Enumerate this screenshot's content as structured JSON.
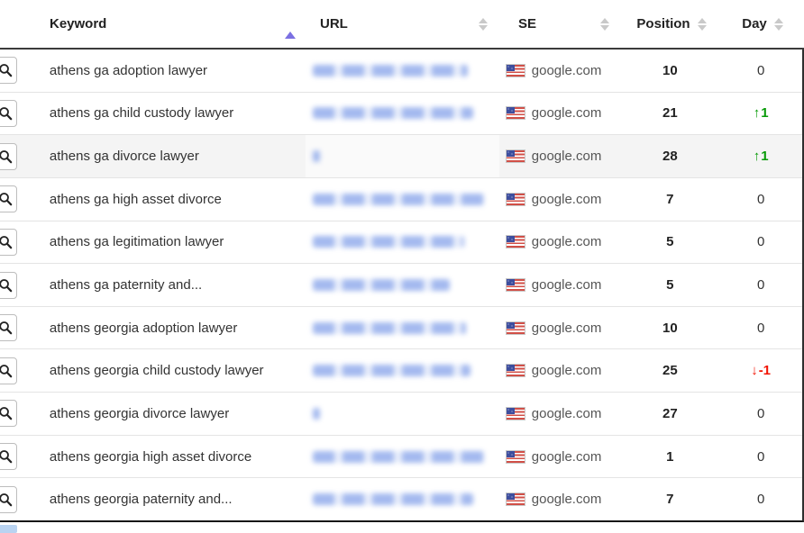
{
  "header": {
    "columns": [
      {
        "label": "Keyword",
        "sort": "asc"
      },
      {
        "label": "URL",
        "sort": "none"
      },
      {
        "label": "SE",
        "sort": "none"
      },
      {
        "label": "Position",
        "sort": "none"
      },
      {
        "label": "Day",
        "sort": "none"
      }
    ]
  },
  "rows": [
    {
      "keyword": "athens ga adoption lawyer",
      "url_blurred": true,
      "url_blur_width": 172,
      "se": "google.com",
      "position": "10",
      "day_text": "0",
      "day_dir": "none",
      "highlighted": false
    },
    {
      "keyword": "athens ga child custody lawyer",
      "url_blurred": true,
      "url_blur_width": 178,
      "se": "google.com",
      "position": "21",
      "day_text": "1",
      "day_dir": "up",
      "highlighted": false
    },
    {
      "keyword": "athens ga divorce lawyer",
      "url_blurred": true,
      "url_blur_width": 8,
      "se": "google.com",
      "position": "28",
      "day_text": "1",
      "day_dir": "up",
      "highlighted": true
    },
    {
      "keyword": "athens ga high asset divorce",
      "url_blurred": true,
      "url_blur_width": 190,
      "se": "google.com",
      "position": "7",
      "day_text": "0",
      "day_dir": "none",
      "highlighted": false
    },
    {
      "keyword": "athens ga legitimation lawyer",
      "url_blurred": true,
      "url_blur_width": 168,
      "se": "google.com",
      "position": "5",
      "day_text": "0",
      "day_dir": "none",
      "highlighted": false
    },
    {
      "keyword": "athens ga paternity and...",
      "url_blurred": true,
      "url_blur_width": 152,
      "se": "google.com",
      "position": "5",
      "day_text": "0",
      "day_dir": "none",
      "highlighted": false
    },
    {
      "keyword": "athens georgia adoption lawyer",
      "url_blurred": true,
      "url_blur_width": 170,
      "se": "google.com",
      "position": "10",
      "day_text": "0",
      "day_dir": "none",
      "highlighted": false
    },
    {
      "keyword": "athens georgia child custody lawyer",
      "url_blurred": true,
      "url_blur_width": 175,
      "se": "google.com",
      "position": "25",
      "day_text": "-1",
      "day_dir": "down",
      "highlighted": false
    },
    {
      "keyword": "athens georgia divorce lawyer",
      "url_blurred": true,
      "url_blur_width": 8,
      "se": "google.com",
      "position": "27",
      "day_text": "0",
      "day_dir": "none",
      "highlighted": false
    },
    {
      "keyword": "athens georgia high asset divorce",
      "url_blurred": true,
      "url_blur_width": 190,
      "se": "google.com",
      "position": "1",
      "day_text": "0",
      "day_dir": "none",
      "highlighted": false
    },
    {
      "keyword": "athens georgia paternity and...",
      "url_blurred": true,
      "url_blur_width": 178,
      "se": "google.com",
      "position": "7",
      "day_text": "0",
      "day_dir": "none",
      "highlighted": false
    }
  ],
  "icons": {
    "sort_ascending": "triangle-up",
    "sort_inactive": "triangle-up-down",
    "search": "magnifier",
    "flag": "us-flag",
    "up_arrow": "↑",
    "down_arrow": "↓"
  },
  "colors": {
    "day_up": "#089b08",
    "day_down": "#f21505",
    "sort_active": "#7b70e2",
    "sort_inactive": "#c9c9c9",
    "row_highlight": "#f4f4f4",
    "url_blur": "#7d9ce8"
  }
}
